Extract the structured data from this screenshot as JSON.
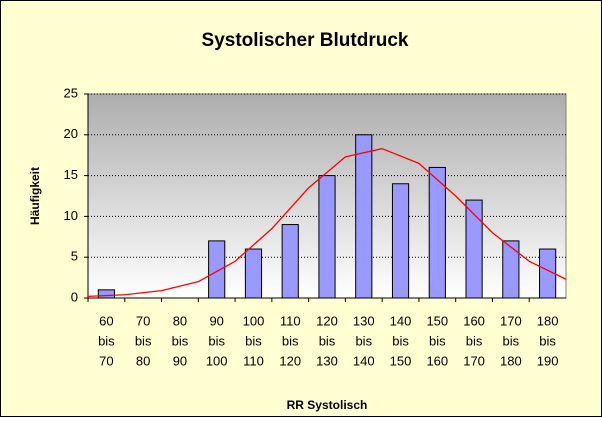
{
  "chart_data": {
    "type": "bar",
    "title": "Systolischer Blutdruck",
    "categories": [
      [
        "60",
        "bis",
        "70"
      ],
      [
        "70",
        "bis",
        "80"
      ],
      [
        "80",
        "bis",
        "90"
      ],
      [
        "90",
        "bis",
        "100"
      ],
      [
        "100",
        "bis",
        "110"
      ],
      [
        "110",
        "bis",
        "120"
      ],
      [
        "120",
        "bis",
        "130"
      ],
      [
        "130",
        "bis",
        "140"
      ],
      [
        "140",
        "bis",
        "150"
      ],
      [
        "150",
        "bis",
        "160"
      ],
      [
        "160",
        "bis",
        "170"
      ],
      [
        "170",
        "bis",
        "180"
      ],
      [
        "180",
        "bis",
        "190"
      ]
    ],
    "values": [
      1,
      0,
      0,
      7,
      6,
      9,
      15,
      20,
      14,
      16,
      12,
      7,
      6
    ],
    "color": "#9999ff",
    "ylim": [
      0,
      25
    ],
    "yticks": [
      0,
      5,
      10,
      15,
      20,
      25
    ],
    "grid": true,
    "ylabel": "Häufigkeit",
    "xlabel": "RR Systolisch",
    "xlim": [
      60,
      190
    ],
    "curve": {
      "color": "#ff0000",
      "x": [
        60,
        70,
        80,
        90,
        100,
        110,
        120,
        130,
        140,
        150,
        160,
        170,
        180,
        190
      ],
      "values": [
        0.2,
        0.4,
        0.9,
        2,
        4.5,
        8.5,
        13.5,
        17.3,
        18.3,
        16.5,
        12.5,
        8,
        4.5,
        2.3
      ]
    }
  }
}
